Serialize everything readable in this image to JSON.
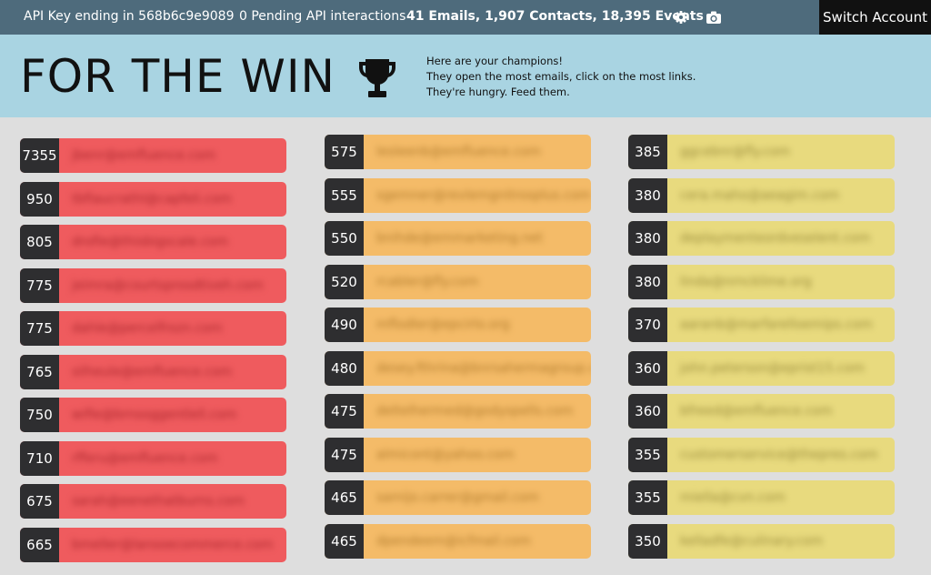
{
  "topbar": {
    "api_key": "API Key ending in 568b6c9e9089",
    "pending": "0 Pending API interactions",
    "stats": "41 Emails, 1,907 Contacts, 18,395 Events",
    "settings_icon": "gear-icon",
    "camera_icon": "camera-icon",
    "switch_account": "Switch Account"
  },
  "banner": {
    "title": "FOR THE WIN",
    "trophy_icon": "trophy-icon",
    "tagline": [
      "Here are your champions!",
      "They open the most emails, click on the most links.",
      "They're hungry. Feed them."
    ]
  },
  "colors": {
    "topbar": "#4e6b7c",
    "banner": "#a9d4e2",
    "page": "#dedede",
    "score_badge": "#2e2e30",
    "tier1": "#ef5b5e",
    "tier2": "#f4bb68",
    "tier3": "#e8da7e"
  },
  "champions": [
    [
      {
        "score": "7355",
        "email": "jbenr@emfluence.com"
      },
      {
        "score": "950",
        "email": "tbfiaucrathl@capfeli.com"
      },
      {
        "score": "805",
        "email": "drofie@thisbigscale.com"
      },
      {
        "score": "775",
        "email": "jeimra@courtsprosdtiveh.com"
      },
      {
        "score": "775",
        "email": "dahle@percelfrozn.com"
      },
      {
        "score": "765",
        "email": "silheule@emfluence.com"
      },
      {
        "score": "750",
        "email": "wifie@brnsoggentlell.com"
      },
      {
        "score": "710",
        "email": "rfferu@emfluence.com"
      },
      {
        "score": "675",
        "email": "sarah@eenethatburns.com"
      },
      {
        "score": "665",
        "email": "bmeller@lansoecommerce.com"
      }
    ],
    [
      {
        "score": "575",
        "email": "lesleenb@emfluence.com"
      },
      {
        "score": "555",
        "email": "sgemner@revlemgnitrosplus.com"
      },
      {
        "score": "550",
        "email": "bnihde@emmarketing.net"
      },
      {
        "score": "520",
        "email": "rcabler@fly.com"
      },
      {
        "score": "490",
        "email": "mflodler@epcirlo.org"
      },
      {
        "score": "480",
        "email": "desey.fthrina@bnrsahermagroup.com"
      },
      {
        "score": "475",
        "email": "deltelhermed@godyspells.com"
      },
      {
        "score": "475",
        "email": "almicont@yahoo.com"
      },
      {
        "score": "465",
        "email": "samijo.carrer@gmail.com"
      },
      {
        "score": "465",
        "email": "dpendeem@icfmail.com"
      }
    ],
    [
      {
        "score": "385",
        "email": "ggcebnr@fly.com"
      },
      {
        "score": "380",
        "email": "cera.maho@aeagim.com"
      },
      {
        "score": "380",
        "email": "deplaymenteordveselent.com"
      },
      {
        "score": "380",
        "email": "linda@nrncklime.org"
      },
      {
        "score": "370",
        "email": "aaranb@marfarelloemips.com"
      },
      {
        "score": "360",
        "email": "john.peterson@eprist15.com"
      },
      {
        "score": "360",
        "email": "bfreed@emfluence.com"
      },
      {
        "score": "355",
        "email": "customerservice@thepres.com"
      },
      {
        "score": "355",
        "email": "miella@cvn.com"
      },
      {
        "score": "350",
        "email": "kelladfe@culinary.com"
      }
    ]
  ]
}
